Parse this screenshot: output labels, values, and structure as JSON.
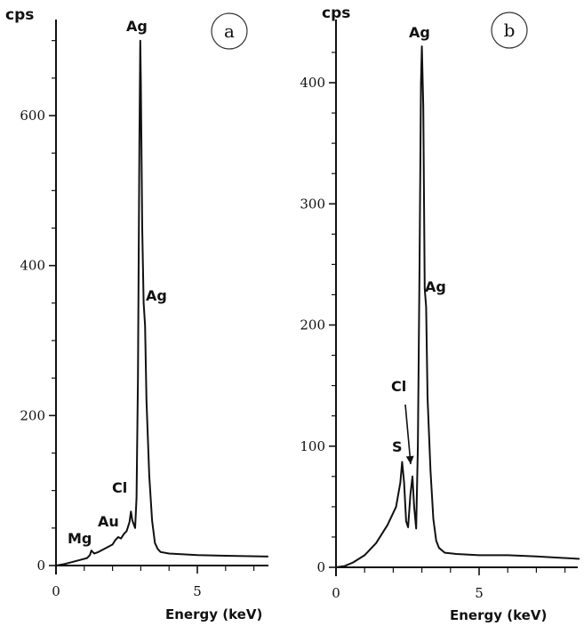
{
  "chart_data": [
    {
      "type": "line",
      "panel_label": "a",
      "ylabel": "cps",
      "xlabel": "Energy (keV)",
      "xlim": [
        0,
        7.5
      ],
      "ylim": [
        0,
        700
      ],
      "x_ticks": [
        0,
        5
      ],
      "y_ticks": [
        0,
        200,
        400,
        600
      ],
      "grid": false,
      "series": [
        {
          "x": [
            0,
            0.3,
            0.6,
            0.9,
            1.1,
            1.2,
            1.25,
            1.35,
            1.5,
            1.8,
            2.0,
            2.1,
            2.2,
            2.3,
            2.4,
            2.5,
            2.6,
            2.65,
            2.7,
            2.8,
            2.85,
            2.9,
            2.95,
            2.98,
            3.0,
            3.05,
            3.1,
            3.15,
            3.2,
            3.3,
            3.4,
            3.5,
            3.6,
            3.7,
            4.0,
            5.0,
            6.0,
            7.5
          ],
          "y": [
            0,
            2,
            5,
            8,
            10,
            14,
            20,
            16,
            18,
            24,
            28,
            34,
            38,
            36,
            42,
            46,
            58,
            72,
            60,
            50,
            90,
            250,
            560,
            700,
            650,
            450,
            350,
            320,
            220,
            120,
            60,
            30,
            22,
            18,
            16,
            14,
            13,
            12
          ]
        }
      ],
      "annotations": [
        {
          "text": "Ag",
          "x": 3.0,
          "y": 700
        },
        {
          "text": "Ag",
          "x": 3.15,
          "y": 340
        },
        {
          "text": "Cl",
          "x": 2.65,
          "y": 75
        },
        {
          "text": "Au",
          "x": 2.15,
          "y": 38
        },
        {
          "text": "Mg",
          "x": 1.25,
          "y": 20
        }
      ]
    },
    {
      "type": "line",
      "panel_label": "b",
      "ylabel": "cps",
      "xlabel": "Energy (keV)",
      "xlim": [
        0,
        8.5
      ],
      "ylim": [
        0,
        440
      ],
      "x_ticks": [
        0,
        5
      ],
      "y_ticks": [
        0,
        100,
        200,
        300,
        400
      ],
      "grid": false,
      "series": [
        {
          "x": [
            0,
            0.3,
            0.6,
            1.0,
            1.4,
            1.8,
            2.1,
            2.25,
            2.31,
            2.38,
            2.45,
            2.52,
            2.6,
            2.67,
            2.73,
            2.8,
            2.86,
            2.92,
            2.97,
            3.0,
            3.05,
            3.1,
            3.15,
            3.2,
            3.3,
            3.4,
            3.5,
            3.6,
            3.8,
            4.2,
            5.0,
            6.0,
            7.0,
            8.5
          ],
          "y": [
            0,
            1,
            4,
            10,
            20,
            35,
            50,
            70,
            87,
            70,
            38,
            33,
            60,
            75,
            50,
            32,
            100,
            250,
            400,
            430,
            380,
            230,
            215,
            140,
            80,
            40,
            22,
            16,
            12,
            11,
            10,
            10,
            9,
            7
          ]
        }
      ],
      "annotations": [
        {
          "text": "Ag",
          "x": 3.0,
          "y": 430
        },
        {
          "text": "Ag",
          "x": 3.15,
          "y": 215
        },
        {
          "text": "Cl",
          "x": 2.65,
          "y": 75
        },
        {
          "text": "S",
          "x": 2.31,
          "y": 87
        }
      ]
    }
  ]
}
